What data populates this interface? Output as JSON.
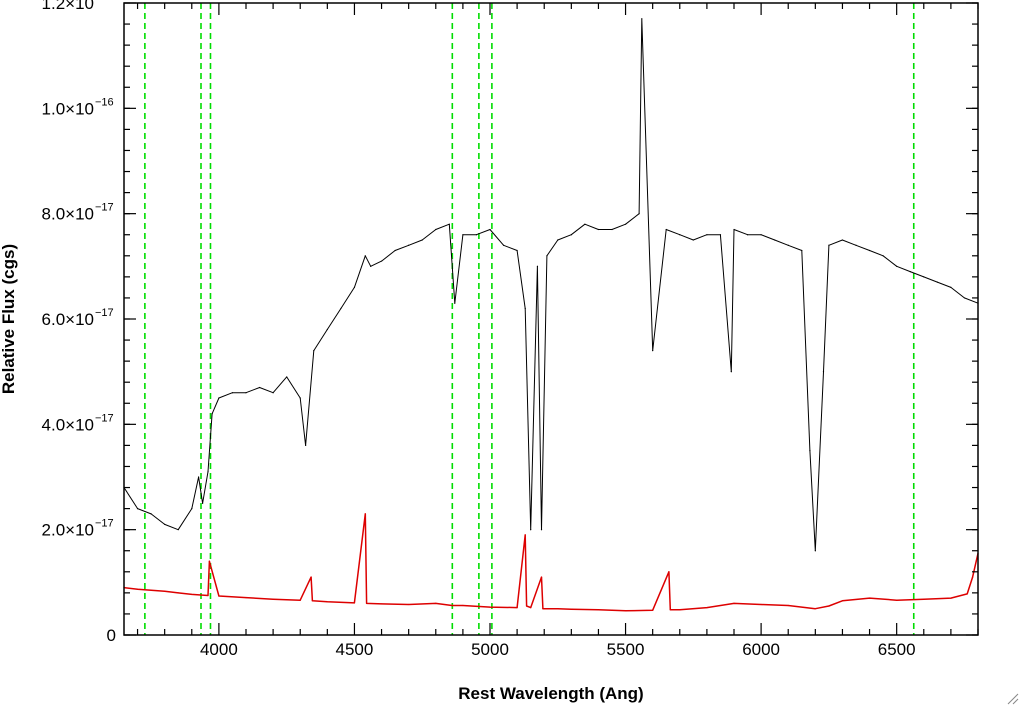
{
  "chart_data": {
    "type": "line",
    "xlabel": "Rest Wavelength (Ang)",
    "ylabel": "Relative Flux (cgs)",
    "xlim": [
      3650,
      6800
    ],
    "ylim": [
      0,
      1.2e-16
    ],
    "x_ticks": [
      4000,
      4500,
      5000,
      5500,
      6000,
      6500
    ],
    "x_tick_labels": [
      "4000",
      "4500",
      "5000",
      "5500",
      "6000",
      "6500"
    ],
    "y_ticks": [
      {
        "value": 0,
        "mantissa": "0",
        "exponent": ""
      },
      {
        "value": 2e-17,
        "mantissa": "2.0×10",
        "exponent": "−17"
      },
      {
        "value": 4e-17,
        "mantissa": "4.0×10",
        "exponent": "−17"
      },
      {
        "value": 6e-17,
        "mantissa": "6.0×10",
        "exponent": "−17"
      },
      {
        "value": 8e-17,
        "mantissa": "8.0×10",
        "exponent": "−17"
      },
      {
        "value": 1e-16,
        "mantissa": "1.0×10",
        "exponent": "−16"
      },
      {
        "value": 1.2e-16,
        "mantissa": "1.2×10",
        "exponent": "−16"
      }
    ],
    "grid": false,
    "series": [
      {
        "color": "#000000",
        "style": "solid",
        "x": [
          3650,
          3700,
          3750,
          3800,
          3850,
          3900,
          3925,
          3940,
          3960,
          3975,
          4000,
          4050,
          4100,
          4150,
          4200,
          4250,
          4300,
          4320,
          4350,
          4400,
          4450,
          4500,
          4540,
          4560,
          4600,
          4650,
          4700,
          4750,
          4800,
          4850,
          4870,
          4900,
          4950,
          5000,
          5050,
          5100,
          5130,
          5150,
          5175,
          5190,
          5210,
          5250,
          5300,
          5350,
          5400,
          5450,
          5500,
          5550,
          5560,
          5600,
          5650,
          5700,
          5750,
          5800,
          5850,
          5890,
          5900,
          5950,
          6000,
          6050,
          6100,
          6150,
          6180,
          6200,
          6230,
          6250,
          6300,
          6350,
          6400,
          6450,
          6500,
          6550,
          6600,
          6650,
          6700,
          6750,
          6800
        ],
        "y": [
          2.8e-17,
          2.4e-17,
          2.3e-17,
          2.1e-17,
          2e-17,
          2.4e-17,
          3e-17,
          2.5e-17,
          3.1e-17,
          4.2e-17,
          4.5e-17,
          4.6e-17,
          4.6e-17,
          4.7e-17,
          4.6e-17,
          4.9e-17,
          4.5e-17,
          3.6e-17,
          5.4e-17,
          5.8e-17,
          6.2e-17,
          6.6e-17,
          7.2e-17,
          7e-17,
          7.1e-17,
          7.3e-17,
          7.4e-17,
          7.5e-17,
          7.7e-17,
          7.8e-17,
          6.3e-17,
          7.6e-17,
          7.6e-17,
          7.7e-17,
          7.4e-17,
          7.3e-17,
          6.2e-17,
          2e-17,
          7e-17,
          2e-17,
          7.2e-17,
          7.5e-17,
          7.6e-17,
          7.8e-17,
          7.7e-17,
          7.7e-17,
          7.8e-17,
          8e-17,
          1.17e-16,
          5.4e-17,
          7.7e-17,
          7.6e-17,
          7.5e-17,
          7.6e-17,
          7.6e-17,
          5e-17,
          7.7e-17,
          7.6e-17,
          7.6e-17,
          7.5e-17,
          7.4e-17,
          7.3e-17,
          3.5e-17,
          1.6e-17,
          5e-17,
          7.4e-17,
          7.5e-17,
          7.4e-17,
          7.3e-17,
          7.2e-17,
          7e-17,
          6.9e-17,
          6.8e-17,
          6.7e-17,
          6.6e-17,
          6.4e-17,
          6.3e-17
        ]
      },
      {
        "color": "#dd0000",
        "style": "solid",
        "x": [
          3650,
          3700,
          3800,
          3850,
          3900,
          3960,
          3965,
          4000,
          4100,
          4200,
          4300,
          4340,
          4345,
          4400,
          4500,
          4540,
          4545,
          4600,
          4700,
          4800,
          4860,
          4900,
          5000,
          5100,
          5130,
          5135,
          5150,
          5190,
          5195,
          5250,
          5300,
          5400,
          5500,
          5600,
          5660,
          5665,
          5700,
          5800,
          5900,
          6000,
          6100,
          6200,
          6250,
          6300,
          6400,
          6500,
          6600,
          6700,
          6760,
          6780,
          6800
        ],
        "y": [
          9e-18,
          8.7e-18,
          8.3e-18,
          8e-18,
          7.7e-18,
          7.5e-18,
          1.4e-17,
          7.4e-18,
          7.1e-18,
          6.8e-18,
          6.6e-18,
          1.1e-17,
          6.5e-18,
          6.3e-18,
          6.1e-18,
          2.3e-17,
          6e-18,
          5.9e-18,
          5.8e-18,
          6e-18,
          5.6e-18,
          5.6e-18,
          5.3e-18,
          5.2e-18,
          1.9e-17,
          5.5e-18,
          5.2e-18,
          1.1e-17,
          5e-18,
          5e-18,
          4.9e-18,
          4.8e-18,
          4.6e-18,
          4.7e-18,
          1.2e-17,
          4.8e-18,
          4.8e-18,
          5.2e-18,
          6e-18,
          5.8e-18,
          5.6e-18,
          5e-18,
          5.5e-18,
          6.5e-18,
          7e-18,
          6.6e-18,
          6.8e-18,
          7e-18,
          7.8e-18,
          1.1e-17,
          1.55e-17
        ]
      }
    ],
    "reference_lines": {
      "color": "#00dd00",
      "style": "dashed",
      "x": [
        3727,
        3934,
        3969,
        4861,
        4959,
        5007,
        6563
      ]
    }
  }
}
